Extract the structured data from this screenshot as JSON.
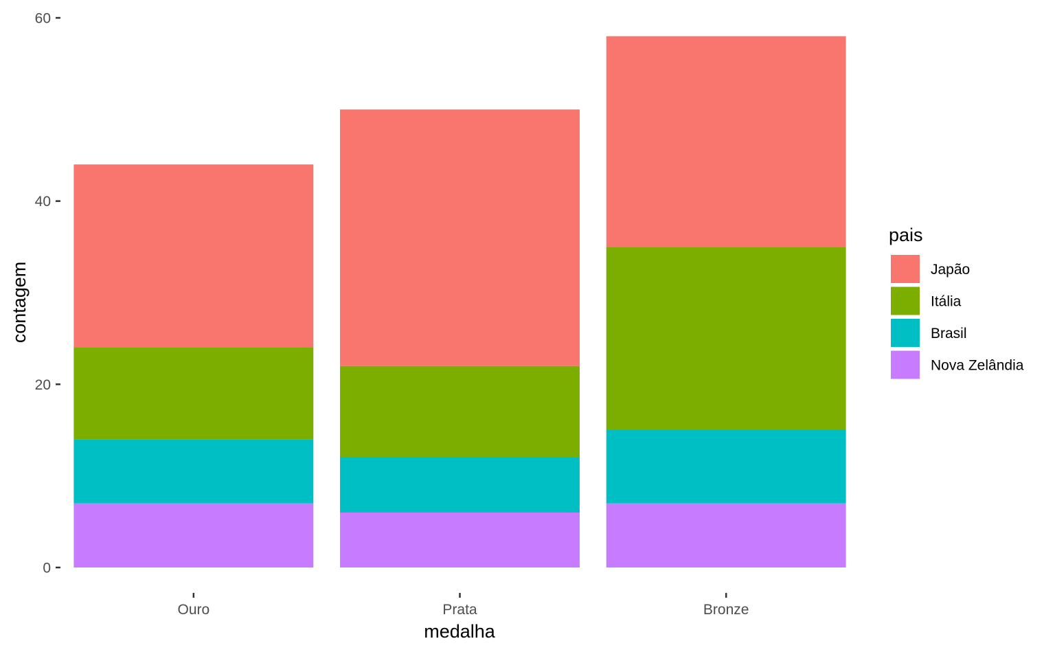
{
  "chart_data": {
    "type": "bar",
    "stacked": true,
    "xlabel": "medalha",
    "ylabel": "contagem",
    "categories": [
      "Ouro",
      "Prata",
      "Bronze"
    ],
    "ylim": [
      0,
      60
    ],
    "yticks": [
      0,
      20,
      40,
      60
    ],
    "grid": false,
    "legend": {
      "title": "pais",
      "position": "right"
    },
    "series": [
      {
        "name": "Japão",
        "color": "#F8766D",
        "values": [
          20,
          28,
          23
        ]
      },
      {
        "name": "Itália",
        "color": "#7CAE00",
        "values": [
          10,
          10,
          20
        ]
      },
      {
        "name": "Brasil",
        "color": "#00BFC4",
        "values": [
          7,
          6,
          8
        ]
      },
      {
        "name": "Nova Zelândia",
        "color": "#C77CFF",
        "values": [
          7,
          6,
          7
        ]
      }
    ]
  }
}
